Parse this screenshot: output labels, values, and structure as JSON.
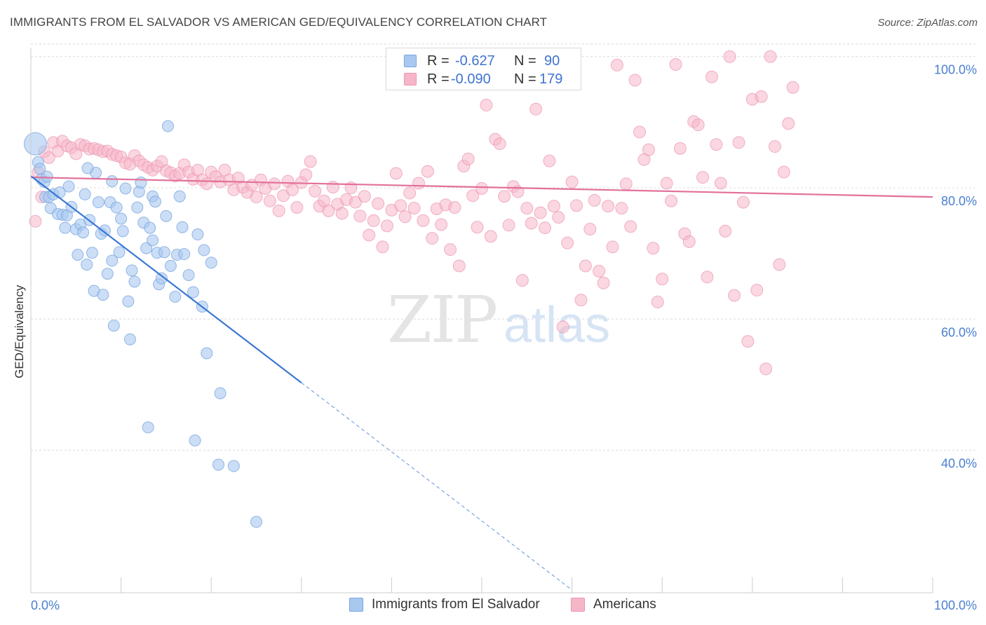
{
  "header": {
    "title": "IMMIGRANTS FROM EL SALVADOR VS AMERICAN GED/EQUIVALENCY CORRELATION CHART",
    "source": "Source: ZipAtlas.com"
  },
  "watermark": {
    "zip": "ZIP",
    "atlas": "atlas"
  },
  "legend": {
    "rows": [
      {
        "r_label": "R =",
        "r_value": "-0.627",
        "n_label": "N =",
        "n_value": "90",
        "color": "#a9c8f0"
      },
      {
        "r_label": "R =",
        "r_value": "-0.090",
        "n_label": "N =",
        "n_value": "179",
        "color": "#f5b6c8"
      }
    ]
  },
  "bottom_legend": {
    "items": [
      {
        "label": "Immigrants from El Salvador",
        "color": "#a9c8f0"
      },
      {
        "label": "Americans",
        "color": "#f5b6c8"
      }
    ]
  },
  "chart_data": {
    "type": "scatter",
    "title": "IMMIGRANTS FROM EL SALVADOR VS AMERICAN GED/EQUIVALENCY CORRELATION CHART",
    "xlabel": "",
    "ylabel": "GED/Equivalency",
    "xlim": [
      0,
      100
    ],
    "ylim": [
      20,
      102
    ],
    "x_tick_labels": [
      "0.0%",
      "100.0%"
    ],
    "y_tick_labels": [
      "40.0%",
      "60.0%",
      "80.0%",
      "100.0%"
    ],
    "y_ticks": [
      40,
      60,
      80,
      100
    ],
    "grid": "horizontal dashed",
    "legend_position": "top-center",
    "colors": {
      "blue_point": "#a9c8f0",
      "blue_edge": "#7aa6e0",
      "blue_line": "#3a78d4",
      "pink_point": "#f5b6c8",
      "pink_edge": "#ec94b0",
      "pink_line": "#e2709a",
      "tick_label": "#4a7fd0"
    },
    "series": [
      {
        "name": "Immigrants from El Salvador",
        "trend": {
          "x": [
            0,
            30
          ],
          "y": [
            81.8,
            50.3
          ],
          "dashed_extension": {
            "x": [
              30,
              100
            ],
            "y": [
              50.3,
              -23.4
            ]
          }
        },
        "points": [
          [
            0.5,
            86.7
          ],
          [
            0.8,
            83.9
          ],
          [
            1.0,
            82.9
          ],
          [
            1.2,
            81.3
          ],
          [
            1.5,
            80.9
          ],
          [
            1.6,
            78.6
          ],
          [
            2.0,
            78.6
          ],
          [
            2.2,
            76.9
          ],
          [
            2.5,
            79.0
          ],
          [
            3.0,
            76.0
          ],
          [
            3.5,
            75.9
          ],
          [
            3.8,
            73.9
          ],
          [
            4.0,
            75.8
          ],
          [
            4.2,
            80.2
          ],
          [
            4.5,
            77.1
          ],
          [
            5.0,
            73.7
          ],
          [
            5.2,
            69.8
          ],
          [
            5.5,
            74.4
          ],
          [
            5.8,
            73.2
          ],
          [
            6.0,
            79.0
          ],
          [
            6.2,
            68.3
          ],
          [
            6.5,
            75.1
          ],
          [
            6.8,
            70.1
          ],
          [
            7.0,
            64.3
          ],
          [
            7.2,
            82.3
          ],
          [
            7.5,
            77.8
          ],
          [
            7.8,
            73.0
          ],
          [
            8.0,
            63.7
          ],
          [
            8.2,
            73.5
          ],
          [
            8.5,
            66.9
          ],
          [
            8.8,
            77.8
          ],
          [
            9.0,
            68.9
          ],
          [
            9.2,
            59.0
          ],
          [
            9.5,
            77.0
          ],
          [
            9.8,
            70.2
          ],
          [
            10.0,
            75.3
          ],
          [
            10.2,
            73.4
          ],
          [
            10.5,
            79.9
          ],
          [
            10.8,
            62.7
          ],
          [
            11.0,
            56.9
          ],
          [
            11.2,
            67.4
          ],
          [
            11.5,
            65.7
          ],
          [
            11.8,
            77.0
          ],
          [
            12.0,
            79.4
          ],
          [
            12.2,
            80.8
          ],
          [
            12.5,
            74.7
          ],
          [
            12.8,
            70.8
          ],
          [
            13.0,
            43.5
          ],
          [
            13.2,
            73.9
          ],
          [
            13.5,
            78.7
          ],
          [
            13.8,
            77.9
          ],
          [
            14.0,
            70.1
          ],
          [
            14.2,
            65.3
          ],
          [
            14.5,
            66.2
          ],
          [
            14.8,
            70.2
          ],
          [
            15.0,
            75.7
          ],
          [
            15.2,
            89.4
          ],
          [
            15.5,
            68.1
          ],
          [
            16.0,
            63.4
          ],
          [
            16.2,
            69.8
          ],
          [
            16.5,
            78.7
          ],
          [
            17.0,
            69.9
          ],
          [
            17.5,
            66.7
          ],
          [
            18.0,
            64.1
          ],
          [
            18.5,
            72.9
          ],
          [
            19.0,
            61.9
          ],
          [
            19.5,
            54.8
          ],
          [
            20.0,
            68.6
          ],
          [
            20.8,
            37.8
          ],
          [
            21.0,
            48.7
          ],
          [
            22.5,
            37.6
          ],
          [
            25.0,
            29.1
          ],
          [
            18.2,
            41.5
          ],
          [
            1.8,
            81.7
          ],
          [
            3.2,
            79.3
          ],
          [
            6.3,
            83.0
          ],
          [
            9.0,
            81.0
          ],
          [
            13.5,
            72.0
          ],
          [
            16.8,
            74.0
          ],
          [
            19.2,
            70.5
          ]
        ]
      },
      {
        "name": "Americans",
        "trend": {
          "x": [
            0,
            100
          ],
          "y": [
            81.6,
            78.6
          ]
        },
        "points": [
          [
            0.5,
            74.9
          ],
          [
            0.8,
            82.4
          ],
          [
            1.2,
            78.6
          ],
          [
            1.5,
            85.5
          ],
          [
            2.0,
            84.6
          ],
          [
            2.5,
            86.9
          ],
          [
            3.0,
            85.6
          ],
          [
            3.5,
            87.1
          ],
          [
            4.0,
            86.4
          ],
          [
            4.5,
            86.1
          ],
          [
            5.0,
            85.2
          ],
          [
            5.5,
            86.6
          ],
          [
            6.0,
            86.4
          ],
          [
            6.5,
            85.9
          ],
          [
            7.0,
            86.0
          ],
          [
            7.5,
            85.8
          ],
          [
            8.0,
            85.5
          ],
          [
            8.5,
            85.6
          ],
          [
            9.0,
            85.1
          ],
          [
            9.5,
            84.9
          ],
          [
            10.0,
            84.7
          ],
          [
            10.5,
            83.8
          ],
          [
            11.0,
            83.6
          ],
          [
            11.5,
            84.9
          ],
          [
            12.0,
            84.1
          ],
          [
            12.5,
            83.5
          ],
          [
            13.0,
            83.1
          ],
          [
            13.5,
            82.7
          ],
          [
            14.0,
            83.3
          ],
          [
            14.5,
            84.0
          ],
          [
            15.0,
            82.6
          ],
          [
            15.5,
            82.3
          ],
          [
            16.0,
            81.8
          ],
          [
            16.5,
            82.2
          ],
          [
            17.0,
            83.5
          ],
          [
            17.5,
            82.4
          ],
          [
            18.0,
            81.3
          ],
          [
            18.5,
            82.7
          ],
          [
            19.0,
            81.2
          ],
          [
            19.5,
            80.6
          ],
          [
            20.0,
            82.4
          ],
          [
            20.5,
            81.7
          ],
          [
            21.0,
            80.9
          ],
          [
            21.5,
            82.7
          ],
          [
            22.0,
            81.2
          ],
          [
            22.5,
            79.7
          ],
          [
            23.0,
            81.5
          ],
          [
            23.5,
            80.1
          ],
          [
            24.0,
            79.3
          ],
          [
            24.5,
            80.4
          ],
          [
            25.0,
            78.6
          ],
          [
            25.5,
            81.2
          ],
          [
            26.0,
            79.9
          ],
          [
            26.5,
            78.0
          ],
          [
            27.0,
            80.6
          ],
          [
            27.5,
            76.5
          ],
          [
            28.0,
            78.8
          ],
          [
            28.5,
            81.0
          ],
          [
            29.0,
            79.7
          ],
          [
            29.5,
            77.0
          ],
          [
            30.0,
            80.8
          ],
          [
            30.5,
            82.0
          ],
          [
            31.0,
            84.0
          ],
          [
            31.5,
            79.5
          ],
          [
            32.0,
            77.2
          ],
          [
            32.5,
            78.0
          ],
          [
            33.0,
            76.5
          ],
          [
            33.5,
            80.1
          ],
          [
            34.0,
            77.5
          ],
          [
            34.5,
            76.1
          ],
          [
            35.0,
            78.2
          ],
          [
            35.5,
            80.0
          ],
          [
            36.0,
            77.8
          ],
          [
            36.5,
            75.7
          ],
          [
            37.0,
            78.7
          ],
          [
            37.5,
            72.8
          ],
          [
            38.0,
            75.0
          ],
          [
            38.5,
            77.6
          ],
          [
            39.0,
            71.0
          ],
          [
            39.5,
            74.2
          ],
          [
            40.0,
            76.6
          ],
          [
            40.5,
            82.2
          ],
          [
            41.0,
            77.3
          ],
          [
            41.5,
            75.6
          ],
          [
            42.0,
            79.2
          ],
          [
            42.5,
            76.9
          ],
          [
            43.0,
            80.7
          ],
          [
            43.5,
            75.0
          ],
          [
            44.0,
            82.5
          ],
          [
            44.5,
            72.3
          ],
          [
            45.0,
            76.8
          ],
          [
            45.5,
            74.4
          ],
          [
            46.0,
            77.4
          ],
          [
            46.5,
            70.6
          ],
          [
            47.0,
            77.0
          ],
          [
            47.5,
            68.1
          ],
          [
            48.0,
            83.3
          ],
          [
            48.5,
            84.4
          ],
          [
            49.0,
            78.8
          ],
          [
            49.5,
            74.0
          ],
          [
            50.0,
            79.9
          ],
          [
            50.5,
            92.6
          ],
          [
            51.0,
            72.6
          ],
          [
            51.5,
            87.4
          ],
          [
            52.0,
            86.7
          ],
          [
            52.5,
            78.7
          ],
          [
            53.0,
            74.3
          ],
          [
            53.5,
            80.2
          ],
          [
            54.0,
            79.4
          ],
          [
            54.5,
            65.9
          ],
          [
            55.0,
            76.9
          ],
          [
            55.5,
            74.6
          ],
          [
            56.0,
            92.0
          ],
          [
            56.5,
            76.2
          ],
          [
            57.0,
            73.9
          ],
          [
            57.5,
            84.1
          ],
          [
            58.0,
            77.2
          ],
          [
            58.5,
            75.5
          ],
          [
            59.0,
            58.8
          ],
          [
            59.5,
            71.6
          ],
          [
            60.0,
            80.9
          ],
          [
            60.5,
            77.3
          ],
          [
            61.0,
            62.9
          ],
          [
            61.5,
            68.1
          ],
          [
            62.0,
            73.7
          ],
          [
            62.5,
            78.1
          ],
          [
            63.0,
            67.3
          ],
          [
            63.5,
            65.5
          ],
          [
            64.0,
            77.2
          ],
          [
            64.5,
            71.0
          ],
          [
            65.0,
            98.7
          ],
          [
            65.5,
            76.9
          ],
          [
            66.0,
            80.6
          ],
          [
            66.5,
            74.1
          ],
          [
            67.0,
            96.4
          ],
          [
            67.5,
            88.5
          ],
          [
            68.0,
            84.3
          ],
          [
            68.5,
            85.8
          ],
          [
            69.0,
            70.8
          ],
          [
            69.5,
            62.6
          ],
          [
            70.0,
            66.1
          ],
          [
            70.5,
            80.7
          ],
          [
            71.0,
            78.0
          ],
          [
            71.5,
            98.8
          ],
          [
            72.0,
            86.0
          ],
          [
            72.5,
            73.0
          ],
          [
            73.0,
            71.8
          ],
          [
            73.5,
            90.1
          ],
          [
            74.0,
            89.6
          ],
          [
            74.5,
            81.6
          ],
          [
            75.0,
            66.4
          ],
          [
            75.5,
            96.9
          ],
          [
            76.0,
            86.6
          ],
          [
            76.5,
            80.7
          ],
          [
            77.0,
            73.4
          ],
          [
            77.5,
            100.0
          ],
          [
            78.0,
            63.6
          ],
          [
            78.5,
            86.9
          ],
          [
            79.0,
            77.8
          ],
          [
            79.5,
            56.6
          ],
          [
            80.0,
            93.5
          ],
          [
            80.5,
            64.4
          ],
          [
            81.0,
            93.9
          ],
          [
            81.5,
            52.4
          ],
          [
            82.0,
            100.0
          ],
          [
            82.5,
            86.3
          ],
          [
            83.0,
            68.3
          ],
          [
            83.5,
            82.4
          ],
          [
            84.0,
            89.8
          ],
          [
            84.5,
            95.3
          ]
        ]
      }
    ]
  }
}
